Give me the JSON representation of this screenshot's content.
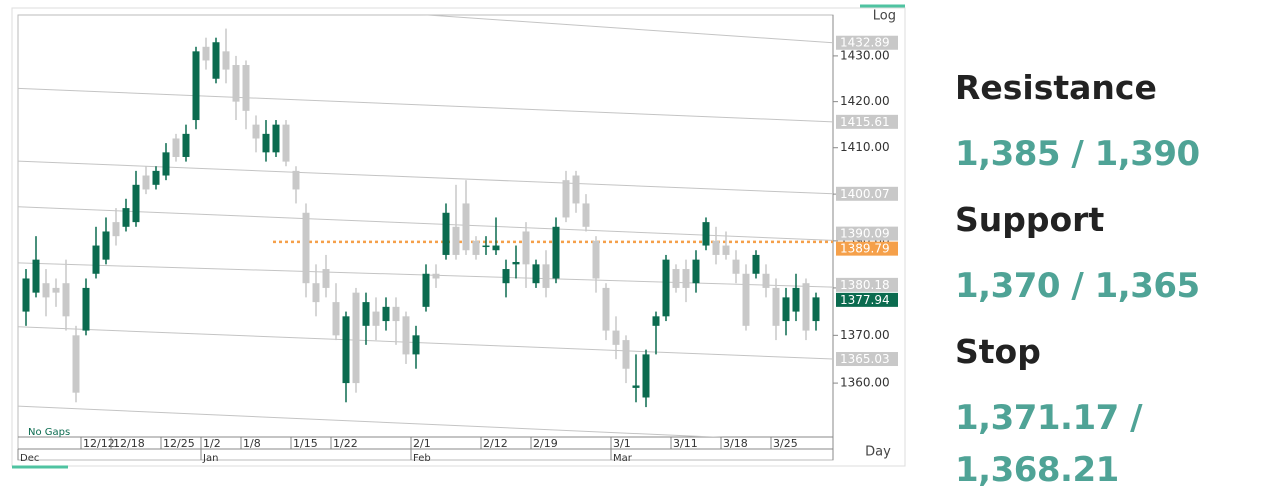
{
  "chart_data": {
    "type": "candlestick",
    "scale_label": "Log",
    "log_scale": true,
    "gaps_label": "No Gaps",
    "x_unit_label": "Day",
    "up_color": "#0b6b4f",
    "down_color": "#c8c8c8",
    "ylim": [
      1348.8,
      1439.0
    ],
    "yticks": [
      {
        "value": 1360,
        "label": "1360.00"
      },
      {
        "value": 1370,
        "label": "1370.00"
      },
      {
        "value": 1380,
        "label": "1380.00"
      },
      {
        "value": 1390,
        "label": "1390.00"
      },
      {
        "value": 1400,
        "label": "1400.00"
      },
      {
        "value": 1410,
        "label": "1410.00"
      },
      {
        "value": 1420,
        "label": "1420.00"
      },
      {
        "value": 1430,
        "label": "1430.00"
      }
    ],
    "xlim": [
      -0.8,
      80.7
    ],
    "xticks": [
      {
        "value": 5.5,
        "label": "12/12"
      },
      {
        "value": 8.5,
        "label": "12/18"
      },
      {
        "value": 13.5,
        "label": "12/25"
      },
      {
        "value": 17.5,
        "label": "1/2"
      },
      {
        "value": 21.5,
        "label": "1/8"
      },
      {
        "value": 26.5,
        "label": "1/15"
      },
      {
        "value": 30.5,
        "label": "1/22"
      },
      {
        "value": 38.5,
        "label": "2/1"
      },
      {
        "value": 45.5,
        "label": "2/12"
      },
      {
        "value": 50.5,
        "label": "2/19"
      },
      {
        "value": 58.5,
        "label": "3/1"
      },
      {
        "value": 64.5,
        "label": "3/11"
      },
      {
        "value": 69.5,
        "label": "3/18"
      },
      {
        "value": 74.5,
        "label": "3/25"
      }
    ],
    "month_ticks": [
      {
        "value": -0.8,
        "label": "Dec"
      },
      {
        "value": 17.5,
        "label": "Jan"
      },
      {
        "value": 38.5,
        "label": "Feb"
      },
      {
        "value": 58.5,
        "label": "Mar"
      }
    ],
    "open": [
      1375,
      1379,
      1381,
      1380,
      1381,
      1370,
      1371,
      1383,
      1386,
      1394,
      1393,
      1394,
      1404,
      1402,
      1404,
      1412,
      1408,
      1416,
      1432,
      1425,
      1431,
      1428,
      1428,
      1415,
      1409,
      1409,
      1415,
      1405,
      1396,
      1381,
      1384,
      1377,
      1360,
      1379,
      1372,
      1375,
      1373,
      1376,
      1374,
      1366,
      1376,
      1383,
      1387,
      1393,
      1398,
      1390,
      1389,
      1388,
      1381,
      1385,
      1392,
      1381,
      1385,
      1382,
      1403,
      1404,
      1398,
      1390,
      1380,
      1371,
      1369,
      1359,
      1357,
      1372,
      1374,
      1384,
      1384,
      1381,
      1389,
      1390,
      1389,
      1386,
      1383,
      1383,
      1383,
      1380,
      1373,
      1375,
      1381,
      1373
    ],
    "high": [
      1384,
      1391,
      1384,
      1382,
      1386,
      1372,
      1382,
      1393,
      1395,
      1397,
      1399,
      1405,
      1406,
      1406,
      1411,
      1413,
      1415,
      1432,
      1434,
      1434,
      1436,
      1430,
      1429,
      1417,
      1416,
      1416,
      1416,
      1406,
      1398,
      1385,
      1387,
      1381,
      1375,
      1380,
      1379,
      1378,
      1378,
      1378,
      1375,
      1372,
      1385,
      1385,
      1398,
      1402,
      1403,
      1391,
      1391,
      1395,
      1386,
      1389,
      1394,
      1386,
      1388,
      1395,
      1405,
      1405,
      1400,
      1391,
      1381,
      1374,
      1370,
      1366,
      1367,
      1375,
      1387,
      1385,
      1386,
      1388,
      1395,
      1393,
      1392,
      1388,
      1385,
      1388,
      1385,
      1382,
      1380,
      1383,
      1382,
      1379
    ],
    "low": [
      1372,
      1378,
      1374,
      1376,
      1371,
      1356,
      1370,
      1382,
      1385,
      1389,
      1392,
      1393,
      1400,
      1401,
      1403,
      1407,
      1407,
      1414,
      1427,
      1424,
      1424,
      1416,
      1414,
      1409,
      1407,
      1408,
      1406,
      1398,
      1378,
      1374,
      1378,
      1369,
      1356,
      1358,
      1368,
      1369,
      1371,
      1368,
      1364,
      1363,
      1375,
      1380,
      1386,
      1386,
      1387,
      1386,
      1387,
      1387,
      1378,
      1382,
      1380,
      1380,
      1378,
      1381,
      1394,
      1396,
      1392,
      1379,
      1369,
      1365,
      1360,
      1356,
      1355,
      1366,
      1373,
      1379,
      1377,
      1379,
      1388,
      1385,
      1386,
      1381,
      1371,
      1382,
      1378,
      1369,
      1370,
      1373,
      1369,
      1371
    ],
    "close": [
      1382,
      1386,
      1378,
      1379,
      1374,
      1358,
      1380,
      1389,
      1392,
      1391,
      1397,
      1402,
      1401,
      1405,
      1409,
      1408,
      1413,
      1431,
      1429,
      1433,
      1427,
      1420,
      1418,
      1412,
      1413,
      1415,
      1407,
      1401,
      1381,
      1377,
      1380,
      1370,
      1374,
      1360,
      1377,
      1372,
      1376,
      1373,
      1366,
      1370,
      1383,
      1382,
      1396,
      1387,
      1388,
      1387,
      1389,
      1389,
      1384,
      1385.5,
      1385,
      1385,
      1380,
      1393,
      1395,
      1398,
      1393,
      1382,
      1371,
      1368,
      1363,
      1359.5,
      1366,
      1374,
      1386,
      1380,
      1380,
      1386,
      1394,
      1387,
      1387,
      1383,
      1372,
      1387,
      1380,
      1372,
      1378,
      1380,
      1371,
      1378
    ],
    "channel_lines": [
      {
        "values": [
          1445.2,
          1432.89
        ]
      },
      {
        "values": [
          1422.9,
          1415.61
        ]
      },
      {
        "values": [
          1407.1,
          1400.07
        ]
      },
      {
        "values": [
          1397.3,
          1390.09
        ]
      },
      {
        "values": [
          1385.3,
          1380.18
        ]
      },
      {
        "values": [
          1371.8,
          1365.03
        ]
      }
    ],
    "base_line": {
      "values": [
        1355.2,
        1347.7
      ]
    },
    "resistance_line": {
      "from_x": 24.7,
      "value": 1389.79,
      "color": "#f5a04a"
    },
    "last_price": {
      "value": 1377.94,
      "color": "#0b6b4f"
    }
  },
  "panel": {
    "items": [
      {
        "heading": "Resistance",
        "levels": "1,385 / 1,390"
      },
      {
        "heading": "Support",
        "levels": "1,370 / 1,365"
      },
      {
        "heading": "Stop",
        "levels": "1,371.17 / 1,368.21"
      }
    ]
  }
}
